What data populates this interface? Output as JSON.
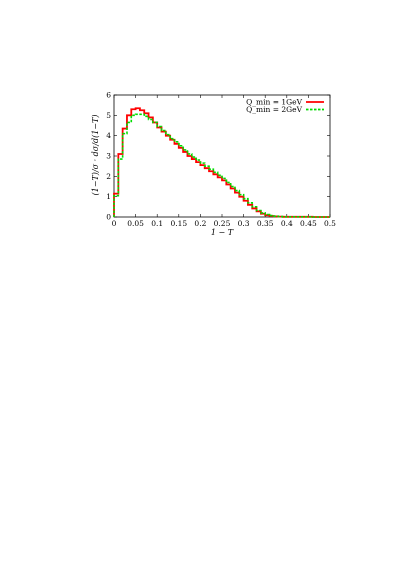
{
  "chart_data": {
    "type": "line",
    "step": true,
    "xlabel": "1 − T",
    "ylabel": "(1−T)/σ · dσ/d(1−T)",
    "xlim": [
      0,
      0.5
    ],
    "ylim": [
      0,
      6
    ],
    "xticks": [
      "0",
      "0.05",
      "0.1",
      "0.15",
      "0.2",
      "0.25",
      "0.3",
      "0.35",
      "0.4",
      "0.45",
      "0.5"
    ],
    "yticks": [
      "0",
      "1",
      "2",
      "3",
      "4",
      "5",
      "6"
    ],
    "legend_position": "top-right",
    "bin_width": 0.01,
    "series": [
      {
        "name": "Q_min = 1GeV",
        "color": "#ff0000",
        "style": "solid",
        "values": [
          1.15,
          3.1,
          4.35,
          5.0,
          5.3,
          5.35,
          5.25,
          5.1,
          4.9,
          4.65,
          4.4,
          4.2,
          4.0,
          3.8,
          3.6,
          3.4,
          3.2,
          3.0,
          2.85,
          2.7,
          2.55,
          2.4,
          2.25,
          2.1,
          1.95,
          1.8,
          1.6,
          1.4,
          1.2,
          1.0,
          0.8,
          0.6,
          0.42,
          0.28,
          0.16,
          0.09,
          0.05,
          0.03,
          0.02,
          0.01,
          0.01,
          0.01,
          0.01,
          0.01,
          0.01,
          0.01,
          0.0,
          0.0,
          0.0,
          0.0
        ]
      },
      {
        "name": "Q_min = 2GeV",
        "color": "#00dd00",
        "style": "dashed",
        "values": [
          1.05,
          2.85,
          4.1,
          4.65,
          5.0,
          5.05,
          5.05,
          4.95,
          4.8,
          4.65,
          4.45,
          4.25,
          4.05,
          3.85,
          3.7,
          3.5,
          3.3,
          3.1,
          2.95,
          2.8,
          2.65,
          2.5,
          2.35,
          2.2,
          2.05,
          1.9,
          1.7,
          1.5,
          1.3,
          1.1,
          0.9,
          0.7,
          0.5,
          0.32,
          0.2,
          0.12,
          0.07,
          0.04,
          0.02,
          0.01,
          0.01,
          0.01,
          0.01,
          0.01,
          0.01,
          0.01,
          0.0,
          0.0,
          0.0,
          0.0
        ]
      }
    ]
  }
}
